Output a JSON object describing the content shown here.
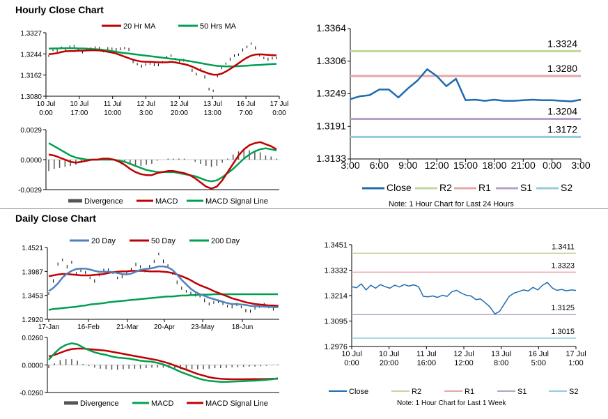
{
  "sections": {
    "hourly_title": "Hourly Close Chart",
    "daily_title": "Daily Close Chart"
  },
  "colors": {
    "ma20": "#c00000",
    "ma50": "#00a050",
    "price": "#000000",
    "close": "#1f6bb0",
    "r2": "#c3d69b",
    "r1": "#e6a6a6",
    "s1": "#b3a2c7",
    "s2": "#92cddc",
    "day20": "#4f81bd",
    "divergence": "#555555",
    "axis": "#000000"
  },
  "chart_data": [
    {
      "id": "hourly_price",
      "type": "line",
      "title": "Hourly Close Chart",
      "legend": [
        "20 Hr MA",
        "50 Hrs MA"
      ],
      "y_ticks": [
        "1.3327",
        "1.3244",
        "1.3162",
        "1.3080"
      ],
      "x_ticks": [
        "10 Jul|0:00",
        "10 Jul|17:00",
        "11 Jul|10:00",
        "12 Jul|3:00",
        "12 Jul|20:00",
        "13 Jul|13:00",
        "16 Jul|7:00",
        "17 Jul|0:00"
      ],
      "ylim": [
        1.308,
        1.3327
      ],
      "series": [
        {
          "name": "Price",
          "values": [
            1.3238,
            1.3262,
            1.3256,
            1.327,
            1.3262,
            1.327,
            1.3276,
            1.3262,
            1.325,
            1.3262,
            1.3265,
            1.3267,
            1.3269,
            1.3258,
            1.3264,
            1.3266,
            1.3262,
            1.3263,
            1.3268,
            1.3263,
            1.3212,
            1.3206,
            1.3198,
            1.3202,
            1.3208,
            1.3204,
            1.32,
            1.3213,
            1.3232,
            1.3236,
            1.3226,
            1.3215,
            1.3218,
            1.3218,
            1.3182,
            1.3164,
            1.3186,
            1.3156,
            1.3106,
            1.3102,
            1.316,
            1.3188,
            1.3208,
            1.3225,
            1.3236,
            1.3243,
            1.3261,
            1.327,
            1.3286,
            1.3269,
            1.3238,
            1.323,
            1.3225,
            1.3226,
            1.323
          ]
        },
        {
          "name": "20 Hr MA",
          "values": [
            1.3244,
            1.3245,
            1.3248,
            1.3252,
            1.3255,
            1.3256,
            1.3256,
            1.3257,
            1.3257,
            1.3258,
            1.3259,
            1.3259,
            1.3258,
            1.3256,
            1.3253,
            1.325,
            1.3246,
            1.324,
            1.3234,
            1.3228,
            1.3222,
            1.3218,
            1.3215,
            1.3214,
            1.3214,
            1.3213,
            1.3212,
            1.3212,
            1.3212,
            1.3214,
            1.3212,
            1.3208,
            1.3205,
            1.3201,
            1.3195,
            1.3188,
            1.318,
            1.3174,
            1.3168,
            1.3164,
            1.3164,
            1.3168,
            1.3176,
            1.3186,
            1.3197,
            1.3208,
            1.322,
            1.323,
            1.3238,
            1.3242,
            1.3243,
            1.3242,
            1.3241,
            1.324,
            1.3239
          ]
        },
        {
          "name": "50 Hrs MA",
          "values": [
            1.3265,
            1.3266,
            1.3266,
            1.3267,
            1.3267,
            1.3267,
            1.3267,
            1.3266,
            1.3266,
            1.3265,
            1.3264,
            1.3263,
            1.3262,
            1.326,
            1.3258,
            1.3256,
            1.3253,
            1.325,
            1.3248,
            1.3246,
            1.3244,
            1.3242,
            1.324,
            1.3238,
            1.3236,
            1.3234,
            1.3232,
            1.323,
            1.3228,
            1.3226,
            1.3224,
            1.3222,
            1.322,
            1.3218,
            1.3215,
            1.3212,
            1.3209,
            1.3206,
            1.3203,
            1.32,
            1.3198,
            1.3197,
            1.3196,
            1.3196,
            1.3196,
            1.3197,
            1.3198,
            1.3199,
            1.32,
            1.3201,
            1.3202,
            1.3203,
            1.3204,
            1.3205,
            1.3206
          ]
        }
      ]
    },
    {
      "id": "hourly_macd",
      "type": "line",
      "legend": [
        "Divergence",
        "MACD",
        "MACD Signal Line"
      ],
      "y_ticks": [
        "0.0029",
        "0.0000",
        "-0.0029"
      ],
      "ylim": [
        -0.0029,
        0.0029
      ],
      "series": [
        {
          "name": "MACD",
          "values": [
            0.0005,
            0.0004,
            0.0002,
            0.0,
            -0.0002,
            -0.0003,
            -0.0002,
            -0.0001,
            0.0,
            0.0,
            0.0001,
            0.0001,
            0.0,
            -0.0002,
            -0.0005,
            -0.0009,
            -0.0012,
            -0.0014,
            -0.0015,
            -0.0015,
            -0.0013,
            -0.0012,
            -0.0011,
            -0.0011,
            -0.0012,
            -0.0013,
            -0.0015,
            -0.0018,
            -0.0022,
            -0.0026,
            -0.0028,
            -0.0026,
            -0.002,
            -0.0012,
            -0.0004,
            0.0004,
            0.001,
            0.0014,
            0.0016,
            0.0017,
            0.0015,
            0.0013,
            0.001
          ]
        },
        {
          "name": "MACD Signal Line",
          "values": [
            0.0016,
            0.0013,
            0.001,
            0.0007,
            0.0004,
            0.0002,
            0.0001,
            0.0,
            0.0,
            0.0,
            0.0,
            0.0,
            0.0,
            -0.0001,
            -0.0002,
            -0.0004,
            -0.0006,
            -0.0008,
            -0.001,
            -0.0011,
            -0.0012,
            -0.0012,
            -0.0012,
            -0.0012,
            -0.0013,
            -0.0014,
            -0.0015,
            -0.0016,
            -0.0018,
            -0.002,
            -0.0021,
            -0.002,
            -0.0017,
            -0.0013,
            -0.0009,
            -0.0004,
            0.0001,
            0.0005,
            0.0008,
            0.001,
            0.0011,
            0.001,
            0.0009
          ]
        },
        {
          "name": "Divergence",
          "values": [
            -0.0011,
            -0.0009,
            -0.0008,
            -0.0007,
            -0.0006,
            -0.0005,
            -0.0003,
            -0.0001,
            0.0,
            0.0,
            0.0001,
            0.0001,
            0.0,
            -0.0001,
            -0.0003,
            -0.0005,
            -0.0006,
            -0.0006,
            -0.0005,
            -0.0004,
            -0.0001,
            0.0,
            0.0001,
            0.0001,
            0.0001,
            0.0001,
            0.0,
            -0.0002,
            -0.0004,
            -0.0006,
            -0.0007,
            -0.0006,
            -0.0003,
            0.0001,
            0.0005,
            0.0008,
            0.0009,
            0.0009,
            0.0008,
            0.0007,
            0.0004,
            0.0003,
            0.0001
          ]
        }
      ]
    },
    {
      "id": "hourly_24h",
      "type": "line",
      "note": "Note: 1 Hour Chart for Last 24 Hours",
      "y_ticks": [
        "1.3364",
        "1.3306",
        "1.3249",
        "1.3191",
        "1.3133"
      ],
      "x_ticks": [
        "3:00",
        "6:00",
        "9:00",
        "12:00",
        "15:00",
        "18:00",
        "21:00",
        "0:00",
        "3:00"
      ],
      "ylim": [
        1.3133,
        1.3364
      ],
      "legend": [
        "Close",
        "R2",
        "R1",
        "S1",
        "S2"
      ],
      "levels": [
        {
          "name": "R2",
          "value": 1.3324,
          "label": "1.3324"
        },
        {
          "name": "R1",
          "value": 1.328,
          "label": "1.3280"
        },
        {
          "name": "S1",
          "value": 1.3204,
          "label": "1.3204"
        },
        {
          "name": "S2",
          "value": 1.3172,
          "label": "1.3172"
        }
      ],
      "series": [
        {
          "name": "Close",
          "values": [
            1.3239,
            1.3244,
            1.3246,
            1.3256,
            1.3256,
            1.3242,
            1.3258,
            1.3272,
            1.3292,
            1.328,
            1.3262,
            1.3275,
            1.3237,
            1.3238,
            1.3236,
            1.3238,
            1.3236,
            1.3236,
            1.3237,
            1.3238,
            1.3237,
            1.3237,
            1.3236,
            1.3235,
            1.3238
          ]
        }
      ]
    },
    {
      "id": "daily_price",
      "type": "line",
      "title": "Daily Close Chart",
      "legend": [
        "20 Day",
        "50 Day",
        "200 Day"
      ],
      "y_ticks": [
        "1.4521",
        "1.3987",
        "1.3453",
        "1.2920"
      ],
      "x_ticks": [
        "17-Jan",
        "16-Feb",
        "21-Mar",
        "20-Apr",
        "23-May",
        "18-Jun"
      ],
      "ylim": [
        1.292,
        1.4521
      ],
      "series": [
        {
          "name": "Price",
          "values": [
            1.35,
            1.378,
            1.414,
            1.425,
            1.41,
            1.418,
            1.395,
            1.402,
            1.395,
            1.385,
            1.378,
            1.39,
            1.403,
            1.402,
            1.395,
            1.385,
            1.388,
            1.393,
            1.405,
            1.415,
            1.408,
            1.4,
            1.41,
            1.42,
            1.438,
            1.422,
            1.41,
            1.395,
            1.375,
            1.36,
            1.355,
            1.35,
            1.345,
            1.344,
            1.335,
            1.325,
            1.33,
            1.333,
            1.326,
            1.322,
            1.321,
            1.324,
            1.32,
            1.312,
            1.309,
            1.317,
            1.322,
            1.324,
            1.32,
            1.316,
            1.32
          ]
        },
        {
          "name": "20 Day",
          "values": [
            1.355,
            1.362,
            1.372,
            1.385,
            1.394,
            1.4,
            1.404,
            1.405,
            1.405,
            1.403,
            1.4,
            1.398,
            1.398,
            1.398,
            1.397,
            1.395,
            1.393,
            1.392,
            1.394,
            1.398,
            1.402,
            1.404,
            1.405,
            1.407,
            1.41,
            1.41,
            1.408,
            1.402,
            1.392,
            1.38,
            1.37,
            1.36,
            1.353,
            1.348,
            1.344,
            1.34,
            1.337,
            1.334,
            1.331,
            1.328,
            1.326,
            1.326,
            1.325,
            1.324,
            1.322,
            1.321,
            1.321,
            1.32,
            1.32,
            1.319,
            1.319
          ]
        },
        {
          "name": "50 Day",
          "values": [
            1.388,
            1.39,
            1.392,
            1.393,
            1.393,
            1.392,
            1.391,
            1.39,
            1.39,
            1.39,
            1.391,
            1.392,
            1.393,
            1.395,
            1.397,
            1.398,
            1.399,
            1.399,
            1.4,
            1.4,
            1.4,
            1.4,
            1.399,
            1.399,
            1.399,
            1.398,
            1.397,
            1.395,
            1.392,
            1.388,
            1.384,
            1.379,
            1.373,
            1.368,
            1.364,
            1.36,
            1.355,
            1.351,
            1.347,
            1.343,
            1.339,
            1.336,
            1.333,
            1.33,
            1.328,
            1.326,
            1.325,
            1.324,
            1.323,
            1.323,
            1.322
          ]
        },
        {
          "name": "200 Day",
          "values": [
            1.313,
            1.315,
            1.316,
            1.317,
            1.318,
            1.319,
            1.32,
            1.322,
            1.323,
            1.325,
            1.326,
            1.327,
            1.328,
            1.33,
            1.331,
            1.332,
            1.333,
            1.334,
            1.335,
            1.336,
            1.337,
            1.338,
            1.339,
            1.34,
            1.341,
            1.342,
            1.343,
            1.343,
            1.344,
            1.345,
            1.345,
            1.346,
            1.346,
            1.347,
            1.347,
            1.347,
            1.348,
            1.348,
            1.348,
            1.348,
            1.348,
            1.348,
            1.348,
            1.348,
            1.348,
            1.348,
            1.348,
            1.348,
            1.348,
            1.348,
            1.348
          ]
        }
      ]
    },
    {
      "id": "daily_macd",
      "type": "line",
      "legend": [
        "Divergence",
        "MACD",
        "MACD Signal Line"
      ],
      "y_ticks": [
        "0.0260",
        "0.0000",
        "-0.0260"
      ],
      "ylim": [
        -0.026,
        0.026
      ],
      "series": [
        {
          "name": "MACD",
          "values": [
            0.005,
            0.011,
            0.016,
            0.019,
            0.0205,
            0.0195,
            0.0165,
            0.014,
            0.012,
            0.0105,
            0.0095,
            0.008,
            0.007,
            0.0065,
            0.006,
            0.005,
            0.004,
            0.0035,
            0.003,
            0.002,
            0.0005,
            -0.0015,
            -0.004,
            -0.0065,
            -0.0085,
            -0.0105,
            -0.0125,
            -0.014,
            -0.015,
            -0.0155,
            -0.016,
            -0.016,
            -0.0157,
            -0.0155,
            -0.0153,
            -0.015,
            -0.0148,
            -0.0145,
            -0.014,
            -0.0135,
            -0.0125
          ]
        },
        {
          "name": "MACD Signal Line",
          "values": [
            0.008,
            0.0095,
            0.0115,
            0.0135,
            0.015,
            0.0155,
            0.0155,
            0.015,
            0.0145,
            0.014,
            0.0135,
            0.0125,
            0.0115,
            0.0105,
            0.0095,
            0.0085,
            0.0075,
            0.0065,
            0.0055,
            0.0045,
            0.003,
            0.0015,
            -0.0005,
            -0.0025,
            -0.0045,
            -0.0065,
            -0.0085,
            -0.01,
            -0.0115,
            -0.0125,
            -0.013,
            -0.0133,
            -0.0135,
            -0.0135,
            -0.0135,
            -0.0134,
            -0.0133,
            -0.0133,
            -0.0132,
            -0.0131,
            -0.013
          ]
        },
        {
          "name": "Divergence",
          "values": [
            -0.003,
            0.0015,
            0.0045,
            0.0055,
            0.0055,
            0.004,
            0.001,
            -0.001,
            -0.0025,
            -0.0035,
            -0.004,
            -0.0045,
            -0.0045,
            -0.004,
            -0.0035,
            -0.0035,
            -0.0035,
            -0.003,
            -0.0025,
            -0.0025,
            -0.0025,
            -0.003,
            -0.0035,
            -0.004,
            -0.004,
            -0.004,
            -0.004,
            -0.004,
            -0.0035,
            -0.003,
            -0.003,
            -0.0027,
            -0.0022,
            -0.002,
            -0.0018,
            -0.0016,
            -0.0015,
            -0.0012,
            -0.0008,
            -0.0004,
            0.0005
          ]
        }
      ]
    },
    {
      "id": "daily_week",
      "type": "line",
      "note": "Note: 1 Hour Chart for Last 1 Week",
      "y_ticks": [
        "1.3451",
        "1.3332",
        "1.3214",
        "1.3095",
        "1.2976"
      ],
      "x_ticks": [
        "10 Jul|0:00",
        "10 Jul|20:00",
        "11 Jul|16:00",
        "12 Jul|12:00",
        "13 Jul|8:00",
        "16 Jul|5:00",
        "17 Jul|1:00"
      ],
      "ylim": [
        1.2976,
        1.3451
      ],
      "legend": [
        "Close",
        "R2",
        "R1",
        "S1",
        "S2"
      ],
      "levels": [
        {
          "name": "R2",
          "value": 1.3411,
          "label": "1.3411"
        },
        {
          "name": "R1",
          "value": 1.3323,
          "label": "1.3323"
        },
        {
          "name": "S1",
          "value": 1.3125,
          "label": "1.3125"
        },
        {
          "name": "S2",
          "value": 1.3015,
          "label": "1.3015"
        }
      ],
      "series": [
        {
          "name": "Close",
          "values": [
            1.3255,
            1.325,
            1.3268,
            1.324,
            1.3262,
            1.3248,
            1.3265,
            1.3255,
            1.3248,
            1.3262,
            1.3254,
            1.3265,
            1.3258,
            1.3264,
            1.3255,
            1.321,
            1.3208,
            1.3212,
            1.3205,
            1.3215,
            1.321,
            1.3232,
            1.3238,
            1.3225,
            1.3215,
            1.3212,
            1.3195,
            1.3198,
            1.318,
            1.316,
            1.3128,
            1.314,
            1.3175,
            1.321,
            1.3225,
            1.3232,
            1.324,
            1.3235,
            1.3252,
            1.324,
            1.3262,
            1.3275,
            1.325,
            1.3238,
            1.3242,
            1.3236,
            1.324,
            1.3238
          ]
        }
      ]
    }
  ]
}
